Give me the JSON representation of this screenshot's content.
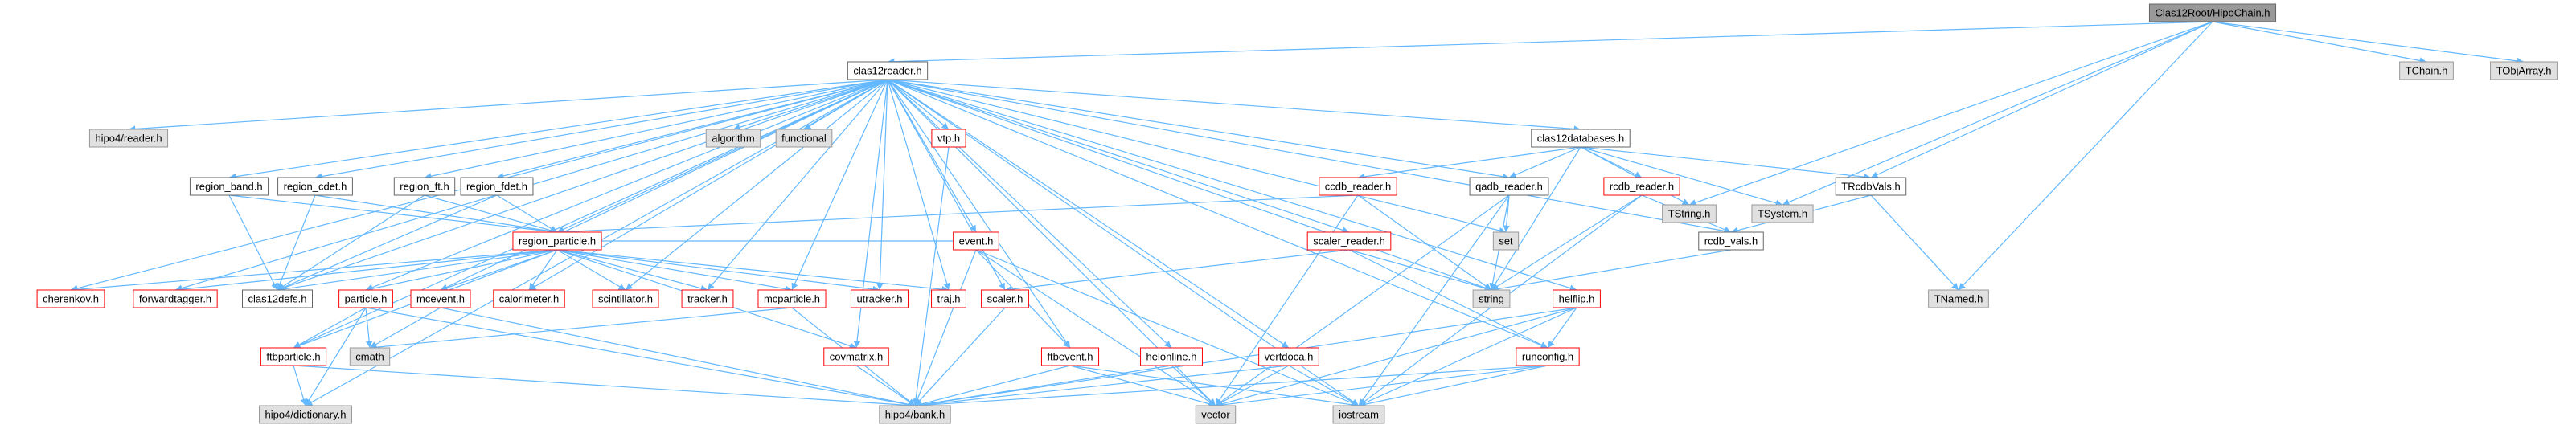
{
  "nodes": [
    {
      "label": "Clas12Root/HipoChain.h"
    },
    {
      "label": "clas12reader.h"
    },
    {
      "label": "TChain.h"
    },
    {
      "label": "TObjArray.h"
    },
    {
      "label": "hipo4/reader.h"
    },
    {
      "label": "algorithm"
    },
    {
      "label": "functional"
    },
    {
      "label": "vtp.h"
    },
    {
      "label": "clas12databases.h"
    },
    {
      "label": "region_band.h"
    },
    {
      "label": "region_cdet.h"
    },
    {
      "label": "region_ft.h"
    },
    {
      "label": "region_fdet.h"
    },
    {
      "label": "ccdb_reader.h"
    },
    {
      "label": "qadb_reader.h"
    },
    {
      "label": "rcdb_reader.h"
    },
    {
      "label": "TString.h"
    },
    {
      "label": "TSystem.h"
    },
    {
      "label": "TRcdbVals.h"
    },
    {
      "label": "region_particle.h"
    },
    {
      "label": "set"
    },
    {
      "label": "rcdb_vals.h"
    },
    {
      "label": "scaler_reader.h"
    },
    {
      "label": "TNamed.h"
    },
    {
      "label": "cherenkov.h"
    },
    {
      "label": "forwardtagger.h"
    },
    {
      "label": "clas12defs.h"
    },
    {
      "label": "particle.h"
    },
    {
      "label": "mcevent.h"
    },
    {
      "label": "calorimeter.h"
    },
    {
      "label": "scintillator.h"
    },
    {
      "label": "tracker.h"
    },
    {
      "label": "mcparticle.h"
    },
    {
      "label": "utracker.h"
    },
    {
      "label": "traj.h"
    },
    {
      "label": "event.h"
    },
    {
      "label": "scaler.h"
    },
    {
      "label": "string"
    },
    {
      "label": "helflip.h"
    },
    {
      "label": "cmath"
    },
    {
      "label": "ftbparticle.h"
    },
    {
      "label": "covmatrix.h"
    },
    {
      "label": "ftbevent.h"
    },
    {
      "label": "helonline.h"
    },
    {
      "label": "vertdoca.h"
    },
    {
      "label": "runconfig.h"
    },
    {
      "label": "hipo4/dictionary.h"
    },
    {
      "label": "hipo4/bank.h"
    },
    {
      "label": "vector"
    },
    {
      "label": "iostream"
    }
  ]
}
